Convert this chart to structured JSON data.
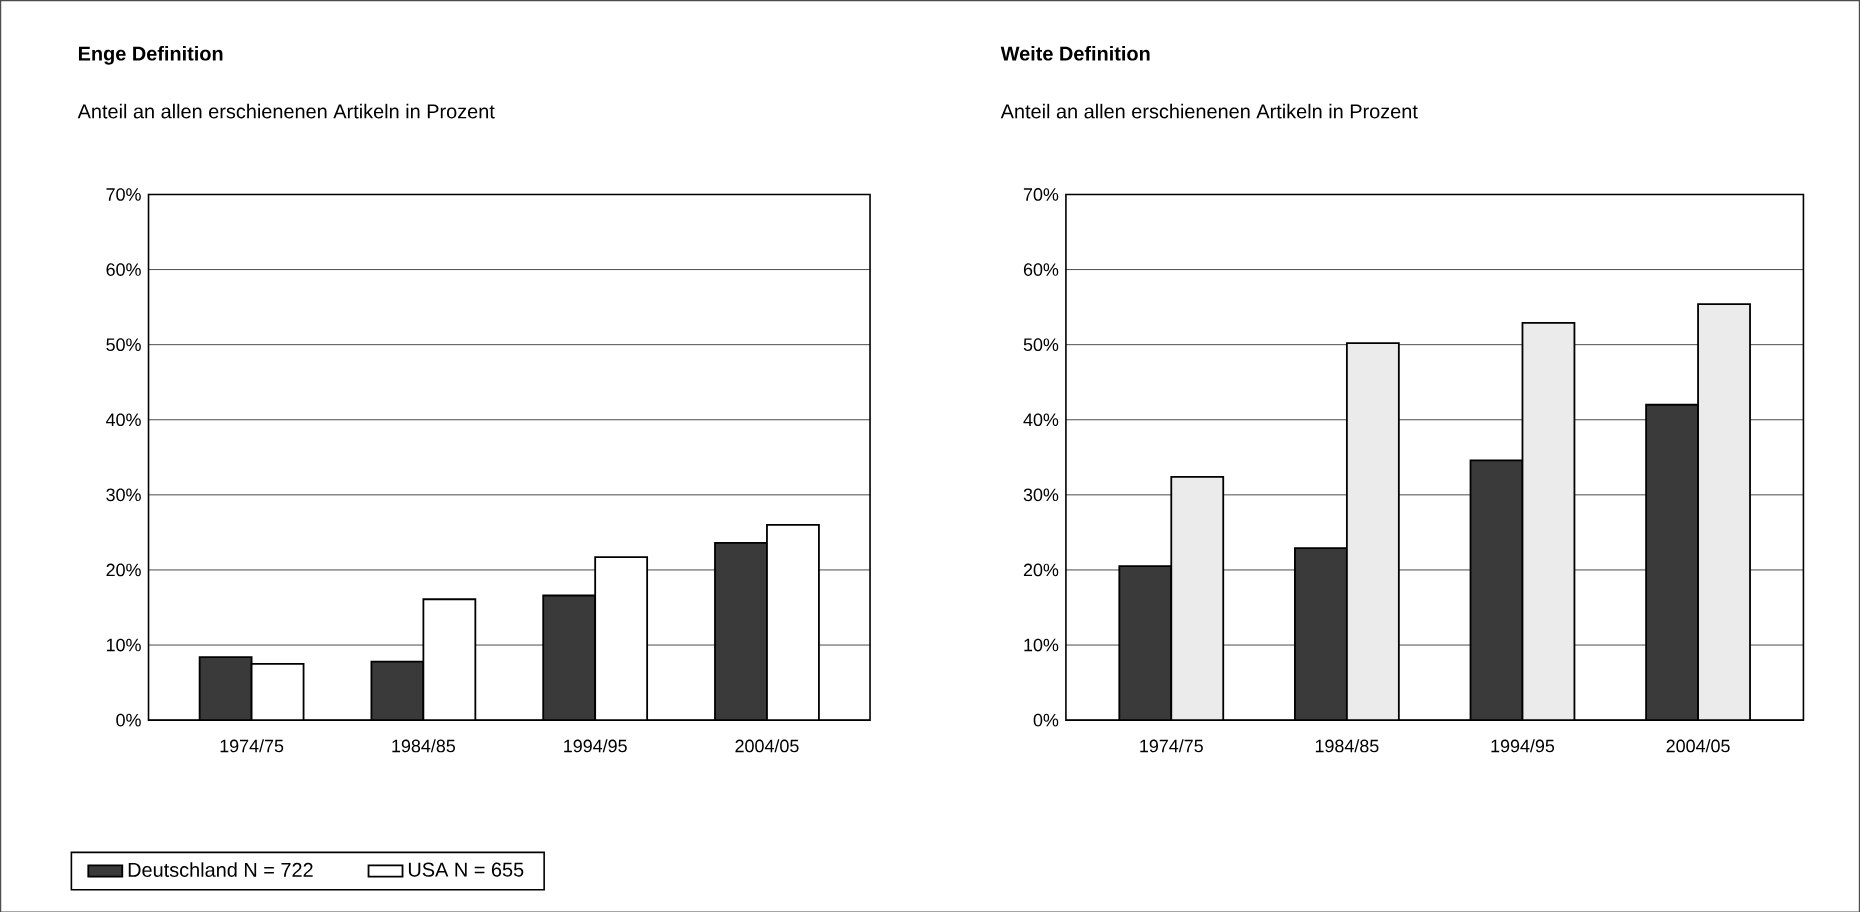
{
  "chart_data": [
    {
      "type": "bar",
      "title": "Enge Definition",
      "subtitle": "Anteil an allen erschienenen Artikeln in Prozent",
      "categories": [
        "1974/75",
        "1984/85",
        "1994/95",
        "2004/05"
      ],
      "series": [
        {
          "name": "Deutschland  N = 722",
          "color": "#3a3a3a",
          "values": [
            8.4,
            7.8,
            16.6,
            23.6
          ]
        },
        {
          "name": "USA  N = 655",
          "color": "#ffffff",
          "values": [
            7.5,
            16.1,
            21.7,
            26.0
          ]
        }
      ],
      "ylim": [
        0,
        70
      ],
      "yticks": [
        {
          "value": 0,
          "label": "0%"
        },
        {
          "value": 10,
          "label": "10%"
        },
        {
          "value": 20,
          "label": "20%"
        },
        {
          "value": 30,
          "label": "30%"
        },
        {
          "value": 40,
          "label": "40%"
        },
        {
          "value": 50,
          "label": "50%"
        },
        {
          "value": 60,
          "label": "60%"
        },
        {
          "value": 70,
          "label": "70%"
        }
      ],
      "grid": "y",
      "legend": "bottom"
    },
    {
      "type": "bar",
      "title": "Weite Definition",
      "subtitle": "Anteil an allen erschienenen Artikeln in Prozent",
      "categories": [
        "1974/75",
        "1984/85",
        "1994/95",
        "2004/05"
      ],
      "series": [
        {
          "color": "#3a3a3a",
          "values": [
            20.5,
            22.9,
            34.6,
            42.0
          ]
        },
        {
          "color": "#ebebeb",
          "values": [
            32.4,
            50.2,
            52.9,
            55.4
          ]
        }
      ],
      "ylim": [
        0,
        70
      ],
      "yticks": [
        {
          "value": 0,
          "label": "0%"
        },
        {
          "value": 10,
          "label": "10%"
        },
        {
          "value": 20,
          "label": "20%"
        },
        {
          "value": 30,
          "label": "30%"
        },
        {
          "value": 40,
          "label": "40%"
        },
        {
          "value": 50,
          "label": "50%"
        },
        {
          "value": 60,
          "label": "60%"
        },
        {
          "value": 70,
          "label": "70%"
        }
      ],
      "grid": "y"
    }
  ]
}
